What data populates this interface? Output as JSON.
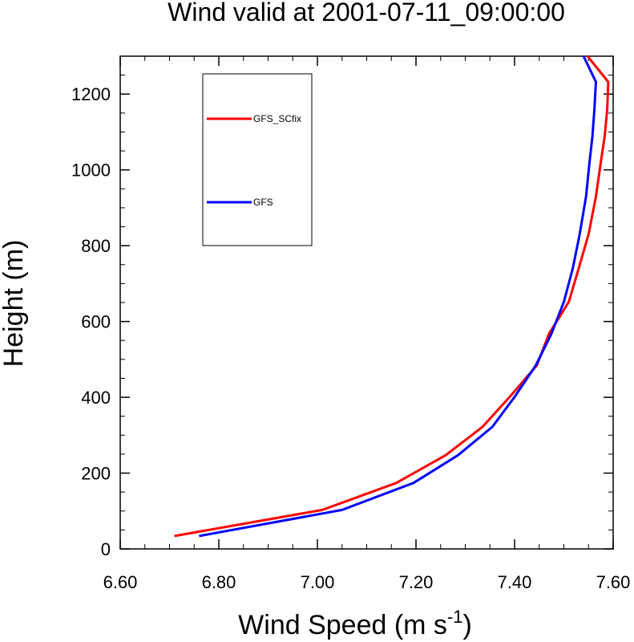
{
  "chart_data": {
    "type": "line",
    "title": "Wind valid at 2001-07-11_09:00:00",
    "xlabel": "Wind Speed (m s",
    "xlabel_superscript": "-1",
    "xlabel_suffix": ")",
    "ylabel": "Height (m)",
    "xlim": [
      6.6,
      7.6
    ],
    "ylim": [
      0,
      1300
    ],
    "xticks": [
      6.6,
      6.8,
      7.0,
      7.2,
      7.4,
      7.6
    ],
    "xtick_labels": [
      "6.60",
      "6.80",
      "7.00",
      "7.20",
      "7.40",
      "7.60"
    ],
    "yticks": [
      0,
      200,
      400,
      600,
      800,
      1000,
      1200
    ],
    "ytick_labels": [
      "0",
      "200",
      "400",
      "600",
      "800",
      "1000",
      "1200"
    ],
    "grid": false,
    "legend_position": "top-left",
    "series": [
      {
        "name": "GFS_SCfix",
        "color": "#ff0000",
        "x": [
          6.71,
          7.01,
          7.16,
          7.26,
          7.335,
          7.39,
          7.445,
          7.47,
          7.51,
          7.53,
          7.55,
          7.565,
          7.575,
          7.583,
          7.588,
          7.59,
          7.548
        ],
        "y": [
          34,
          103,
          174,
          247,
          322,
          401,
          484,
          568,
          652,
          740,
          830,
          930,
          1020,
          1090,
          1160,
          1232,
          1300
        ]
      },
      {
        "name": "GFS",
        "color": "#0000ff",
        "x": [
          6.76,
          7.05,
          7.195,
          7.285,
          7.355,
          7.4,
          7.443,
          7.475,
          7.5,
          7.518,
          7.532,
          7.545,
          7.552,
          7.558,
          7.562,
          7.565,
          7.54
        ],
        "y": [
          34,
          103,
          174,
          247,
          322,
          401,
          484,
          568,
          652,
          740,
          830,
          930,
          1020,
          1090,
          1160,
          1232,
          1300
        ]
      }
    ]
  }
}
